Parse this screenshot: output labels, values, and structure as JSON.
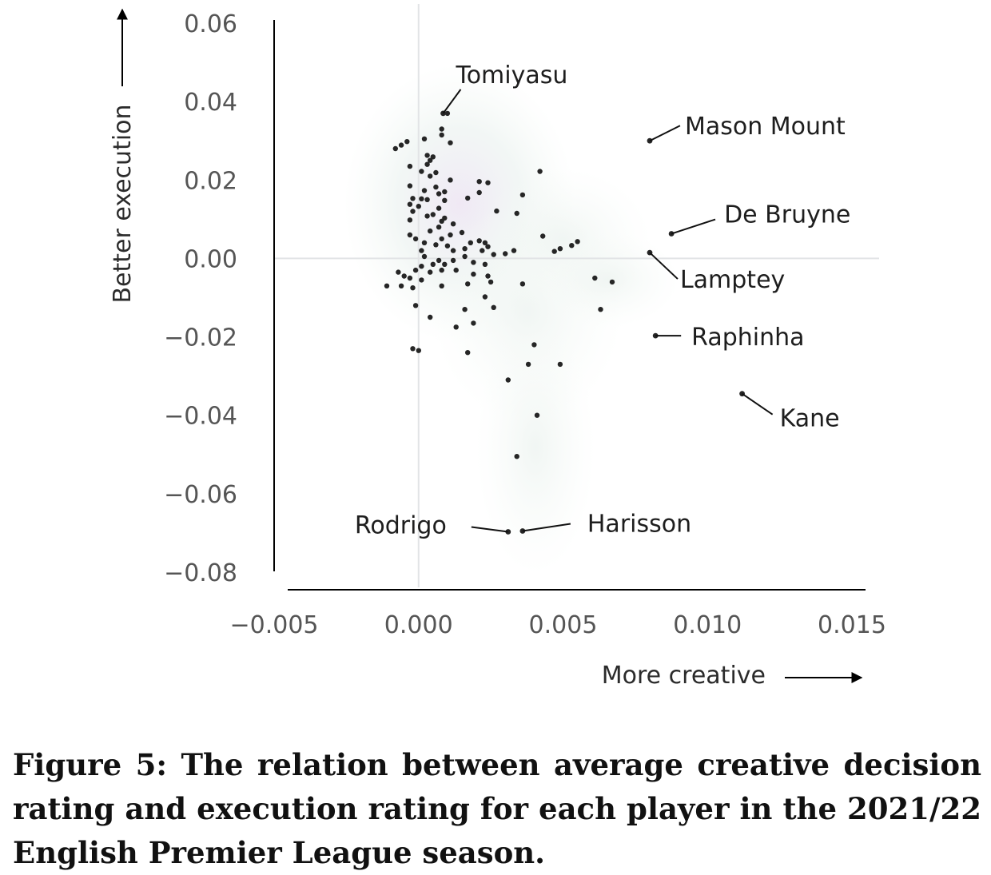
{
  "chart_data": {
    "type": "scatter",
    "xlabel": "More creative",
    "ylabel": "Better execution",
    "xlim": [
      -0.005,
      0.015
    ],
    "ylim": [
      -0.08,
      0.06
    ],
    "xticks": [
      "−0.005",
      "0.000",
      "0.005",
      "0.010",
      "0.015"
    ],
    "yticks": [
      "0.06",
      "0.04",
      "0.02",
      "0.00",
      "−0.02",
      "−0.04",
      "−0.06",
      "−0.08"
    ],
    "grid": "reference lines at x = 0 and y = 0",
    "background": "kernel density shading",
    "points": [
      [
        0.001,
        0.037
      ],
      [
        0.0008,
        0.033
      ],
      [
        0.0008,
        0.0315
      ],
      [
        0.0002,
        0.0305
      ],
      [
        0.0011,
        0.0295
      ],
      [
        -0.0004,
        0.0298
      ],
      [
        -0.0006,
        0.0289
      ],
      [
        -0.0008,
        0.028
      ],
      [
        0.0003,
        0.0263
      ],
      [
        0.0005,
        0.0259
      ],
      [
        0.0004,
        0.025
      ],
      [
        0.0003,
        0.024
      ],
      [
        -0.0003,
        0.0235
      ],
      [
        0.0001,
        0.0222
      ],
      [
        0.0006,
        0.0219
      ],
      [
        0.0004,
        0.021
      ],
      [
        0.0011,
        0.02
      ],
      [
        0.0021,
        0.0196
      ],
      [
        0.0024,
        0.0193
      ],
      [
        -0.0003,
        0.0185
      ],
      [
        0.0006,
        0.0182
      ],
      [
        0.0002,
        0.0173
      ],
      [
        0.0007,
        0.0165
      ],
      [
        0.0009,
        0.017
      ],
      [
        0.0021,
        0.0168
      ],
      [
        0.0036,
        0.0162
      ],
      [
        -0.0002,
        0.0153
      ],
      [
        0.0001,
        0.0152
      ],
      [
        0.0003,
        0.015
      ],
      [
        0.0009,
        0.0148
      ],
      [
        0.0017,
        0.0154
      ],
      [
        -0.0003,
        0.0138
      ],
      [
        0.0,
        0.0133
      ],
      [
        0.0007,
        0.0128
      ],
      [
        0.0005,
        0.0112
      ],
      [
        -0.0002,
        0.012
      ],
      [
        0.0003,
        0.0108
      ],
      [
        0.0009,
        0.0103
      ],
      [
        -0.0003,
        0.0098
      ],
      [
        0.0008,
        0.0095
      ],
      [
        0.0012,
        0.0088
      ],
      [
        0.0007,
        0.008
      ],
      [
        0.0027,
        0.0121
      ],
      [
        0.0034,
        0.0115
      ],
      [
        0.0004,
        0.007
      ],
      [
        0.0011,
        0.006
      ],
      [
        0.0015,
        0.0066
      ],
      [
        -0.0003,
        0.006
      ],
      [
        0.0008,
        0.005
      ],
      [
        -0.0001,
        0.005
      ],
      [
        0.0018,
        0.004
      ],
      [
        0.0021,
        0.0045
      ],
      [
        0.0023,
        0.004
      ],
      [
        0.0002,
        0.004
      ],
      [
        0.0006,
        0.0035
      ],
      [
        0.001,
        0.0032
      ],
      [
        0.0024,
        0.003
      ],
      [
        0.0016,
        0.0025
      ],
      [
        0.0001,
        0.002
      ],
      [
        0.0012,
        0.002
      ],
      [
        0.0022,
        0.002
      ],
      [
        0.003,
        0.0012
      ],
      [
        0.0033,
        0.002
      ],
      [
        0.0016,
        0.0005
      ],
      [
        0.0026,
        0.001
      ],
      [
        0.0002,
        0.0005
      ],
      [
        0.0007,
        -0.0005
      ],
      [
        0.0012,
        -0.0005
      ],
      [
        0.0005,
        -0.0015
      ],
      [
        0.0001,
        -0.002
      ],
      [
        0.0009,
        -0.0015
      ],
      [
        0.0019,
        -0.001
      ],
      [
        0.0023,
        -0.0015
      ],
      [
        -0.0001,
        -0.003
      ],
      [
        0.0004,
        -0.0035
      ],
      [
        0.0008,
        -0.003
      ],
      [
        0.0013,
        -0.003
      ],
      [
        -0.0007,
        -0.0035
      ],
      [
        0.0019,
        -0.004
      ],
      [
        0.0024,
        -0.0045
      ],
      [
        0.0025,
        -0.006
      ],
      [
        0.0001,
        -0.0055
      ],
      [
        0.0017,
        -0.0065
      ],
      [
        -0.0011,
        -0.007
      ],
      [
        -0.0006,
        -0.007
      ],
      [
        -0.0002,
        -0.0075
      ],
      [
        0.0008,
        -0.007
      ],
      [
        0.0036,
        -0.0065
      ],
      [
        0.0023,
        -0.0098
      ],
      [
        0.0026,
        -0.0125
      ],
      [
        0.0016,
        -0.013
      ],
      [
        -0.0001,
        -0.012
      ],
      [
        0.0019,
        -0.0165
      ],
      [
        0.0004,
        -0.015
      ],
      [
        0.0013,
        -0.0175
      ],
      [
        0.004,
        -0.022
      ],
      [
        0.0038,
        -0.027
      ],
      [
        0.0049,
        -0.027
      ],
      [
        0.0031,
        -0.031
      ],
      [
        0.0041,
        -0.04
      ],
      [
        0.0034,
        -0.0505
      ],
      [
        -0.0002,
        -0.023
      ],
      [
        0.0,
        -0.0235
      ],
      [
        0.0017,
        -0.024
      ],
      [
        0.0042,
        0.0222
      ],
      [
        0.0043,
        0.0057
      ],
      [
        0.0049,
        0.0025
      ],
      [
        0.0055,
        0.0043
      ],
      [
        0.0053,
        0.0033
      ],
      [
        0.0047,
        0.0018
      ],
      [
        0.0061,
        -0.005
      ],
      [
        0.0067,
        -0.006
      ],
      [
        0.0063,
        -0.013
      ],
      [
        -0.0005,
        -0.0045
      ],
      [
        -0.0003,
        -0.005
      ]
    ],
    "labeled_points": [
      {
        "name": "Tomiyasu",
        "x": 0.00085,
        "y": 0.037
      },
      {
        "name": "Mason Mount",
        "x": 0.008,
        "y": 0.03
      },
      {
        "name": "De Bruyne",
        "x": 0.00875,
        "y": 0.0063
      },
      {
        "name": "Lamptey",
        "x": 0.008,
        "y": 0.0015
      },
      {
        "name": "Raphinha",
        "x": 0.0082,
        "y": -0.0197
      },
      {
        "name": "Kane",
        "x": 0.0112,
        "y": -0.0345
      },
      {
        "name": "Rodrigo",
        "x": 0.0031,
        "y": -0.0697
      },
      {
        "name": "Harisson",
        "x": 0.0036,
        "y": -0.0695
      }
    ]
  },
  "caption": "Figure 5: The relation between average creative decision rating and execution rating for each player in the 2021/22 English Premier League season."
}
